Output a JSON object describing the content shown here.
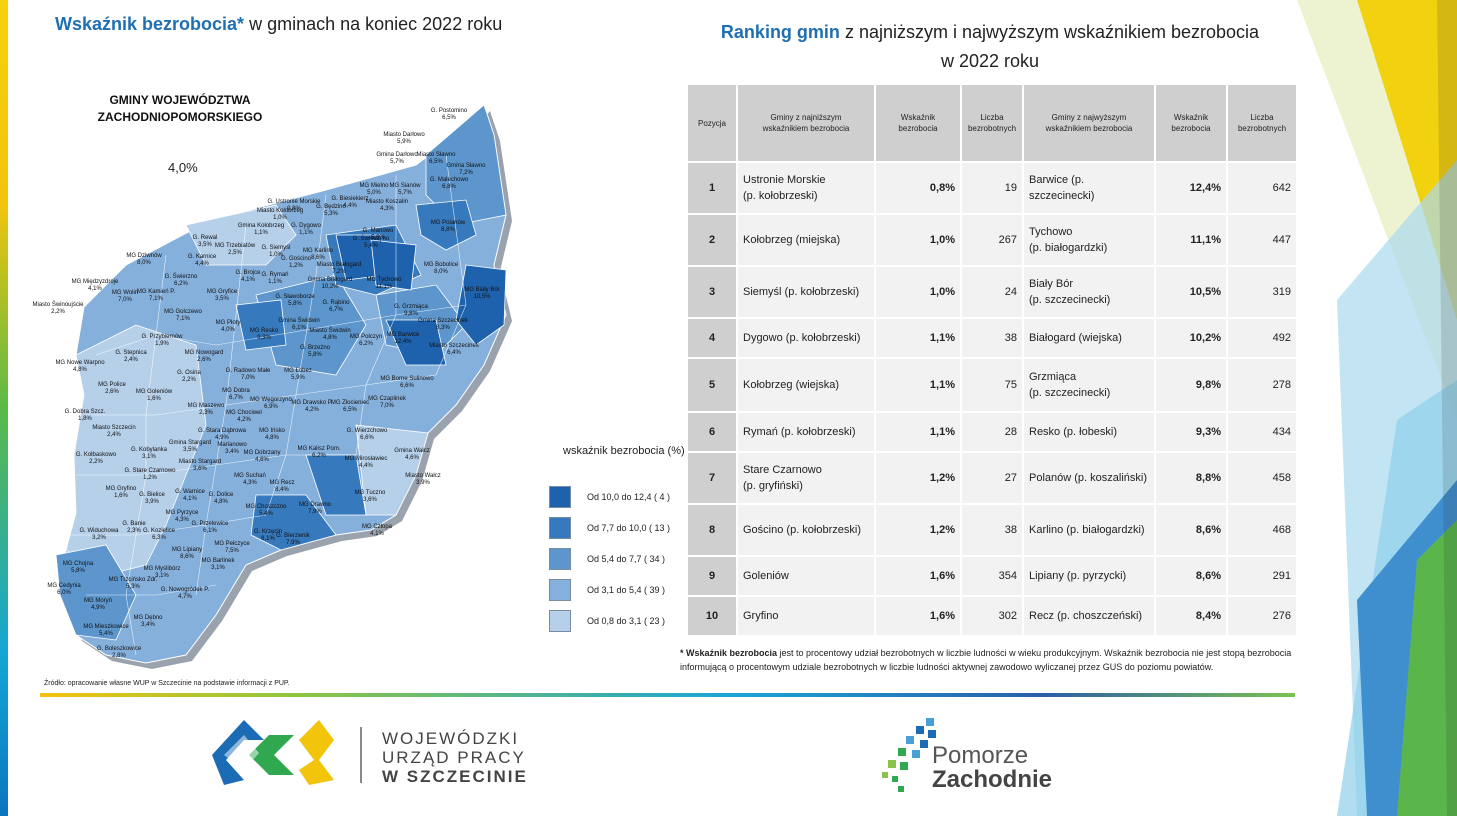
{
  "map_title": {
    "bold": "Wskaźnik bezrobocia*",
    "rest": " w gminach na koniec 2022 roku"
  },
  "map_heading": {
    "line1": "GMINY WOJEWÓDZTWA",
    "line2": "ZACHODNIOPOMORSKIEGO"
  },
  "map_stat": "4,0%",
  "map_labels": [
    "G. Postomino\n6,5%",
    "Miasto Darłowo\n5,9%",
    "Gmina Darłowo\n5,7%",
    "Miasto Sławno\n6,5%",
    "Gmina Sławno\n7,2%",
    "G. Malechowo\n6,8%",
    "MG Mielno\n5,0%",
    "MG Sianów\n5,7%",
    "G. Ustronie Morskie\n0,8%",
    "Miasto Kołobrzeg\n1,0%",
    "G. Będzino\n5,3%",
    "Miasto Koszalin\n4,3%",
    "G. Biesiekierz\n4,4%",
    "Gmina Kołobrzeg\n1,1%",
    "G. Dygowo\n1,1%",
    "G. Manowo\n5,0%",
    "G. Świeszyno\n5,4%",
    "MG Polanów\n8,8%",
    "G. Rewal\n3,5%",
    "MG Trzebiatów\n2,5%",
    "G. Siemyśl\n1,0%",
    "G. Gościno\n1,2%",
    "MG Karlino\n8,6%",
    "MG Dziwnów\n8,0%",
    "G. Karnice\n4,4%",
    "Miasto Białogard\n7,2%",
    "Gmina Białogard\n10,2%",
    "MG Tychowo\n11,1%",
    "MG Bobolice\n8,0%",
    "MG Międzyzdroje\n4,1%",
    "G. Świerzno\n6,2%",
    "G. Brojce\n4,1%",
    "G. Rymań\n1,1%",
    "MG Biały Bór\n10,5%",
    "MG Wolin\n7,0%",
    "MG Kamień P.\n7,1%",
    "MG Gryfice\n3,5%",
    "G. Sławoborze\n5,8%",
    "G. Rąbino\n6,7%",
    "G. Grzmiąca\n9,8%",
    "Miasto Świnoujście\n2,2%",
    "MG Golczewo\n7,1%",
    "Gmina Szczecinek\n8,3%",
    "MG Płoty\n4,0%",
    "Gmina Świdwin\n6,1%",
    "MG Resko\n9,3%",
    "Miasto Świdwin\n4,8%",
    "G. Przybiernów\n1,9%",
    "MG Barwice\n12,4%",
    "MG Połczyn\n6,2%",
    "Miasto Szczecinek\n6,4%",
    "G. Stepnica\n2,4%",
    "MG Nowogard\n2,6%",
    "G. Brzeżno\n5,8%",
    "MG Nowe Warpno\n4,8%",
    "G. Radowo Małe\n7,0%",
    "MG Łobez\n5,9%",
    "G. Osina\n2,2%",
    "MG Borne Sulinowo\n6,6%",
    "MG Police\n2,6%",
    "MG Goleniów\n1,6%",
    "MG Dobra\n6,7%",
    "MG Węgorzyno\n6,9%",
    "MG Drawsko P.\n4,2%",
    "MG Czaplinek\n7,0%",
    "G. Dobra Szcz.\n1,8%",
    "MG Maszewo\n2,3%",
    "MG Chociwel\n4,2%",
    "MG Złocieniec\n6,5%",
    "Miasto Szczecin\n2,4%",
    "G. Stara Dąbrowa\n4,9%",
    "MG Ińsko\n4,8%",
    "G. Wierzchowo\n6,6%",
    "Gmina Stargard\n3,5%",
    "Marianowo\n3,4%",
    "G. Kołbaskowo\n2,2%",
    "G. Kobylanka\n3,1%",
    "Miasto Stargard\n3,6%",
    "MG Dobrzany\n4,6%",
    "MG Kalisz Pom.\n6,2%",
    "MG Mirosławiec\n4,4%",
    "Gmina Wałcz\n4,6%",
    "G. Stare Czarnowo\n1,2%",
    "MG Suchań\n4,3%",
    "Miasto Wałcz\n3,9%",
    "MG Gryfino\n1,6%",
    "G. Bielice\n3,9%",
    "G. Warnice\n4,1%",
    "G. Dolice\n4,8%",
    "MG Recz\n8,4%",
    "MG Tuczno\n3,6%",
    "MG Drawno\n7,9%",
    "MG Pyrzyce\n4,3%",
    "MG Choszczno\n5,4%",
    "G. Widuchowa\n3,2%",
    "G. Banie\n2,3%",
    "G. Kozielice\n6,3%",
    "G. Przelewice\n6,1%",
    "G. Krzęcin\n8,1%",
    "G. Bierzwnik\n7,9%",
    "MG Człopa\n4,1%",
    "MG Lipiany\n8,6%",
    "MG Pełczyce\n7,5%",
    "MG Barlinek\n3,1%",
    "MG Chojna\n5,8%",
    "MG Trzcińsko Zdr.\n5,3%",
    "MG Myślibórz\n3,1%",
    "MG Cedynia\n6,0%",
    "G. Nowogródek P.\n4,7%",
    "MG Moryń\n4,9%",
    "MG Mieszkowice\n5,4%",
    "MG Dębno\n3,4%",
    "G. Boleszkowice\n2,8%"
  ],
  "legend": {
    "title": "wskaźnik bezrobocia (%)",
    "items": [
      {
        "label": "Od  10,0 do  12,4 ( 4 )",
        "color": "#1e62ad"
      },
      {
        "label": "Od  7,7 do  10,0 ( 13 )",
        "color": "#3779bd"
      },
      {
        "label": "Od  5,4 do  7,7 ( 34 )",
        "color": "#5c96cd"
      },
      {
        "label": "Od  3,1 do  5,4 ( 39 )",
        "color": "#86b0dc"
      },
      {
        "label": "Od  0,8 do  3,1 ( 23 )",
        "color": "#b6d0ea"
      }
    ]
  },
  "source": "Źródło: opracowanie własne WUP w Szczecinie na podstawie informacji z PUP.",
  "ranking_title": {
    "bold": "Ranking gmin",
    "rest": " z najniższym i najwyższym wskaźnikiem bezrobocia",
    "line2": "w 2022 roku"
  },
  "table": {
    "headers": [
      "Pozycja",
      "Gminy z najniższym\nwskaźnikiem bezrobocia",
      "Wskaźnik\nbezrobocia",
      "Liczba\nbezrobotnych",
      "Gminy z najwyższym\nwskaźnikiem bezrobocia",
      "Wskaźnik\nbezrobocia",
      "Liczba\nbezrobotnych"
    ],
    "rows": [
      [
        "1",
        "Ustronie Morskie\n(p. kołobrzeski)",
        "0,8%",
        "19",
        "Barwice (p. szczecinecki)",
        "12,4%",
        "642"
      ],
      [
        "2",
        "Kołobrzeg (miejska)",
        "1,0%",
        "267",
        "Tychowo\n(p. białogardzki)",
        "11,1%",
        "447"
      ],
      [
        "3",
        "Siemyśl (p. kołobrzeski)",
        "1,0%",
        "24",
        "Biały Bór\n(p. szczecinecki)",
        "10,5%",
        "319"
      ],
      [
        "4",
        "Dygowo (p. kołobrzeski)",
        "1,1%",
        "38",
        "Białogard (wiejska)",
        "10,2%",
        "492"
      ],
      [
        "5",
        "Kołobrzeg (wiejska)",
        "1,1%",
        "75",
        "Grzmiąca\n(p. szczecinecki)",
        "9,8%",
        "278"
      ],
      [
        "6",
        "Rymań (p. kołobrzeski)",
        "1,1%",
        "28",
        "Resko (p. łobeski)",
        "9,3%",
        "434"
      ],
      [
        "7",
        "Stare Czarnowo\n(p. gryfiński)",
        "1,2%",
        "27",
        "Polanów (p. koszaliński)",
        "8,8%",
        "458"
      ],
      [
        "8",
        "Gościno (p. kołobrzeski)",
        "1,2%",
        "38",
        "Karlino (p. białogardzki)",
        "8,6%",
        "468"
      ],
      [
        "9",
        "Goleniów",
        "1,6%",
        "354",
        "Lipiany (p. pyrzycki)",
        "8,6%",
        "291"
      ],
      [
        "10",
        "Gryfino",
        "1,6%",
        "302",
        "Recz (p. choszczeński)",
        "8,4%",
        "276"
      ]
    ]
  },
  "footnote": {
    "bold": "* Wskaźnik bezrobocia",
    "rest": " jest to procentowy udział bezrobotnych w liczbie ludności w wieku produkcyjnym. Wskaźnik bezrobocia nie jest stopą bezrobocia informującą o procentowym udziale bezrobotnych w liczbie ludności aktywnej zawodowo wyliczanej przez GUS do poziomu powiatów."
  },
  "logo_wup": {
    "line1": "WOJEWÓDZKI",
    "line2": "URZĄD PRACY",
    "line3": "W  SZCZECINIE"
  },
  "logo_pz": {
    "line1": "Pomorze",
    "line2": "Zachodnie"
  }
}
